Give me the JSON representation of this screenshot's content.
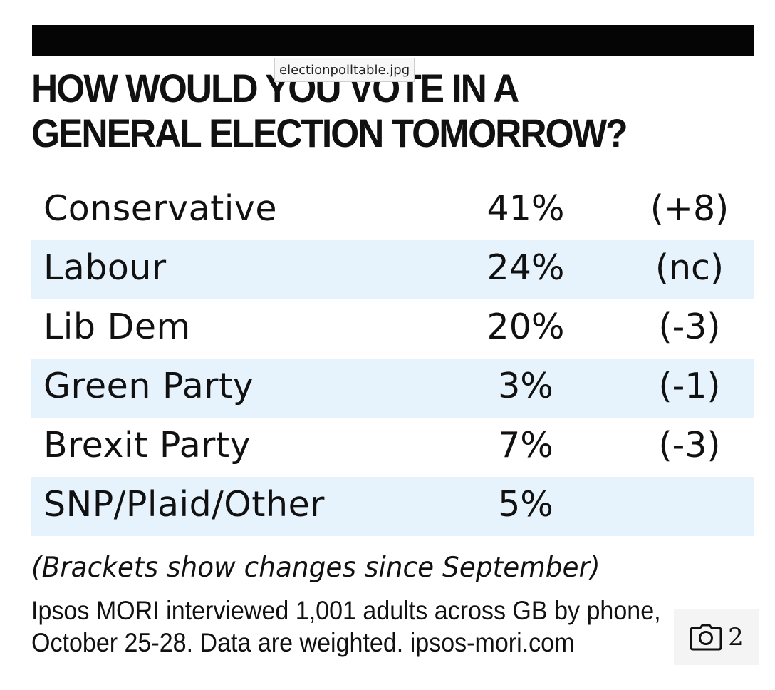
{
  "image_tooltip": "electionpolltable.jpg",
  "chart_data": {
    "type": "table",
    "title_lines": [
      "HOW WOULD YOU VOTE IN A",
      "GENERAL ELECTION TOMORROW?"
    ],
    "rows": [
      {
        "party": "Conservative",
        "share": "41%",
        "change": "(+8)"
      },
      {
        "party": "Labour",
        "share": "24%",
        "change": "(nc)"
      },
      {
        "party": "Lib Dem",
        "share": "20%",
        "change": "(-3)"
      },
      {
        "party": "Green Party",
        "share": "3%",
        "change": "(-1)"
      },
      {
        "party": "Brexit Party",
        "share": "7%",
        "change": "(-3)"
      },
      {
        "party": "SNP/Plaid/Other",
        "share": "5%",
        "change": ""
      }
    ],
    "note": "(Brackets show changes since September)",
    "source_lines": [
      "Ipsos MORI interviewed 1,001 adults across GB by phone,",
      "October 25-28. Data are weighted. ipsos-mori.com"
    ]
  },
  "photo_badge": {
    "icon": "camera-icon",
    "count": "2"
  },
  "colors": {
    "header_bar": "#050505",
    "row_shade": "#e7f3fc",
    "text": "#111111"
  }
}
